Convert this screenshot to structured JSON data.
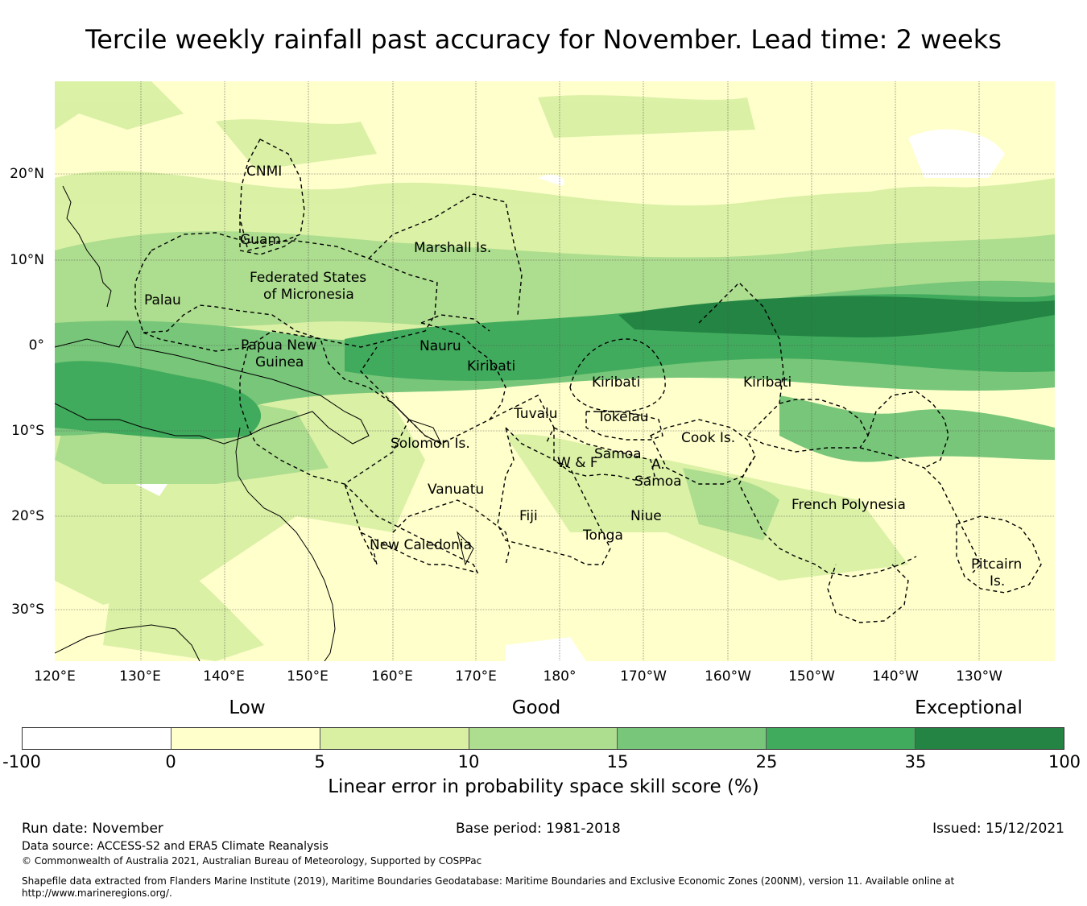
{
  "title": "Tercile weekly rainfall past accuracy for November. Lead time: 2 weeks",
  "map": {
    "lat_labels": [
      "20°N",
      "10°N",
      "0°",
      "10°S",
      "20°S",
      "30°S"
    ],
    "lon_labels": [
      "120°E",
      "130°E",
      "140°E",
      "150°E",
      "160°E",
      "170°E",
      "180°",
      "170°W",
      "160°W",
      "150°W",
      "140°W",
      "130°W"
    ],
    "regions": {
      "cnmi": "CNMI",
      "guam": "Guam",
      "marshall": "Marshall Is.",
      "fsm_1": "Federated States",
      "fsm_2": "of Micronesia",
      "palau": "Palau",
      "png_1": "Papua New",
      "png_2": "Guinea",
      "nauru": "Nauru",
      "kiribati_west": "Kiribati",
      "kiribati_central": "Kiribati",
      "kiribati_east": "Kiribati",
      "tuvalu": "Tuvalu",
      "tokelau": "Tokelau",
      "cook": "Cook Is.",
      "solomon": "Solomon Is.",
      "samoa": "Samoa",
      "wf": "W & F",
      "asamoa_1": "A.",
      "asamoa_2": "Samoa",
      "vanuatu": "Vanuatu",
      "fiji": "Fiji",
      "niue": "Niue",
      "tonga": "Tonga",
      "new_caledonia": "New Caledonia",
      "french_polynesia": "French Polynesia",
      "pitcairn_1": "Pitcairn",
      "pitcairn_2": "Is."
    }
  },
  "legend": {
    "categories": [
      "Low",
      "Good",
      "Exceptional"
    ],
    "colors": [
      "#ffffff",
      "#ffffcc",
      "#d9f0a3",
      "#addd8e",
      "#78c679",
      "#41ab5d",
      "#238443"
    ],
    "ticks": [
      "-100",
      "0",
      "5",
      "10",
      "15",
      "25",
      "35",
      "100"
    ],
    "title": "Linear error in probability space skill score (%)"
  },
  "footer": {
    "run_date": "Run date: November",
    "base_period": "Base period: 1981-2018",
    "issued": "Issued: 15/12/2021",
    "data_source": "Data source: ACCESS-S2 and ERA5 Climate Reanalysis",
    "copyright": "© Commonwealth of Australia 2021, Australian Bureau of Meteorology, Supported by COSPPac",
    "shapefile_1": "Shapefile data extracted from Flanders Marine Institute (2019), Maritime Boundaries Geodatabase: Maritime Boundaries and Exclusive Economic Zones (200NM), version 11. Available online at",
    "shapefile_2": "http://www.marineregions.org/."
  }
}
